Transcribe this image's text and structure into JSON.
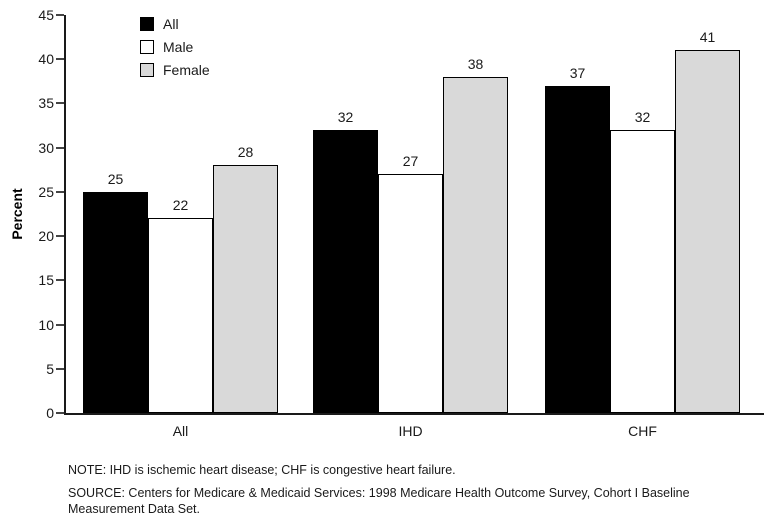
{
  "figure": {
    "note": "NOTE: IHD is ischemic heart disease; CHF is congestive heart failure.",
    "source": "SOURCE: Centers for Medicare & Medicaid Services: 1998 Medicare Health Outcome Survey, Cohort I Baseline Measurement Data Set."
  },
  "chart_data": {
    "type": "bar",
    "title": "",
    "categories": [
      "All",
      "IHD",
      "CHF"
    ],
    "series": [
      {
        "name": "All",
        "color": "#000000",
        "values": [
          25,
          32,
          37
        ]
      },
      {
        "name": "Male",
        "color": "#ffffff",
        "values": [
          22,
          27,
          32
        ]
      },
      {
        "name": "Female",
        "color": "#d9d9d9",
        "values": [
          28,
          38,
          41
        ]
      }
    ],
    "xlabel": "",
    "ylabel": "Percent",
    "ylim": [
      0,
      45
    ],
    "ytick_step": 5,
    "grid": false,
    "legend_position": "top-left",
    "bar_border_color": "#000000",
    "axis_color": "#1a1a1a"
  }
}
